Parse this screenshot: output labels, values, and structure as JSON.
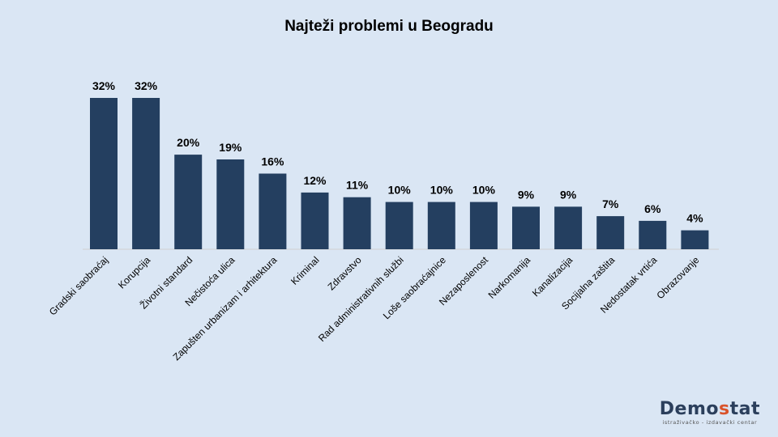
{
  "chart_data": {
    "type": "bar",
    "title": "Najteži problemi u Beogradu",
    "xlabel": "",
    "ylabel": "",
    "ylim": [
      0,
      32
    ],
    "grid": false,
    "legend": "none",
    "bar_color": "#243f60",
    "background": "#dae6f4",
    "categories": [
      "Gradski saobraćaj",
      "Korupcija",
      "Životni standard",
      "Nečistoća ulica",
      "Zapušten urbanizam i arhitektura",
      "Kriminal",
      "Zdravstvo",
      "Rad administrativnih službi",
      "Loše saobraćajnice",
      "Nezaposlenost",
      "Narkomanija",
      "Kanalizacija",
      "Socijalna zaštita",
      "Nedostatak vrtića",
      "Obrazovanje"
    ],
    "values": [
      32,
      32,
      20,
      19,
      16,
      12,
      11,
      10,
      10,
      10,
      9,
      9,
      7,
      6,
      4
    ],
    "value_labels": [
      "32%",
      "32%",
      "20%",
      "19%",
      "16%",
      "12%",
      "11%",
      "10%",
      "10%",
      "10%",
      "9%",
      "9%",
      "7%",
      "6%",
      "4%"
    ]
  },
  "logo": {
    "word_main": "Demo",
    "word_accent": "s",
    "word_end": "tat",
    "subtitle": "istraživačko - izdavački centar",
    "accent_color": "#d9532b"
  }
}
